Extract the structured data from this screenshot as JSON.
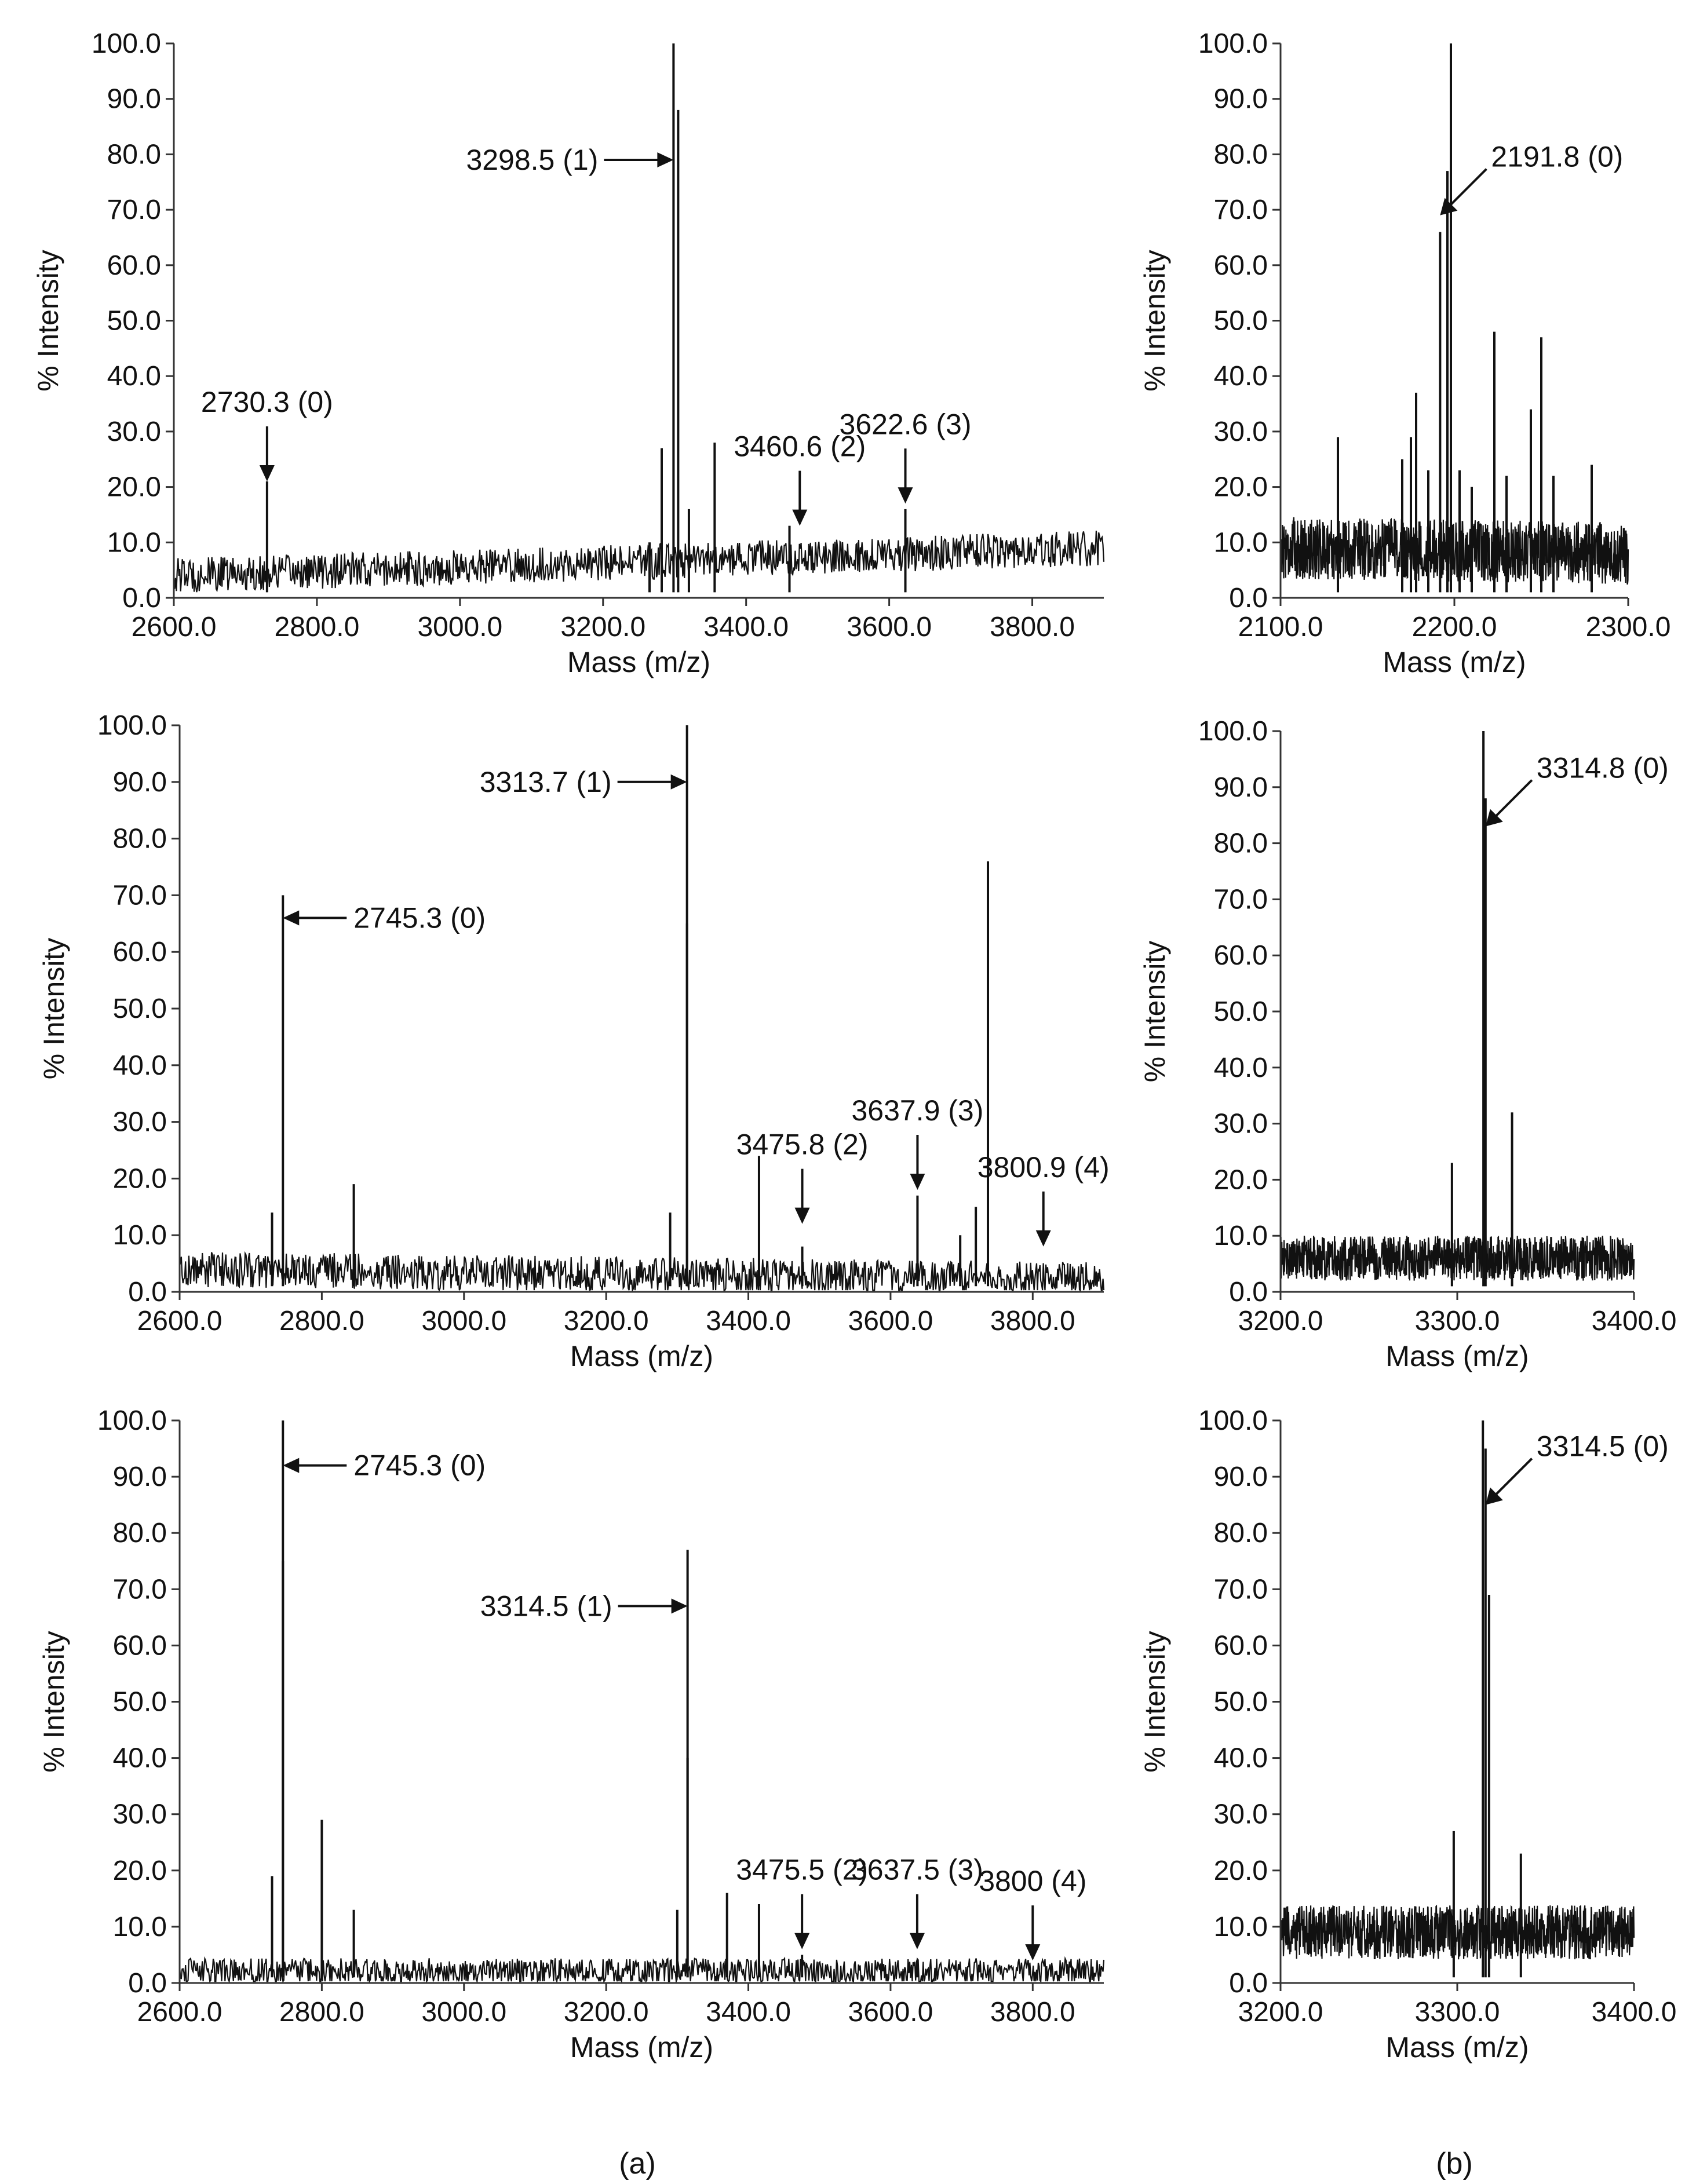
{
  "panel_labels": [
    "(a)",
    "(b)"
  ],
  "chart_data": [
    {
      "type": "line",
      "xlabel": "Mass (m/z)",
      "ylabel": "% Intensity",
      "xlim": [
        2600,
        3900
      ],
      "ylim": [
        0,
        100
      ],
      "xticks": [
        "2600.0",
        "2800.0",
        "3000.0",
        "3200.0",
        "3400.0",
        "3600.0",
        "3800.0"
      ],
      "yticks": [
        "0.0",
        "10.0",
        "20.0",
        "30.0",
        "40.0",
        "50.0",
        "60.0",
        "70.0",
        "80.0",
        "90.0",
        "100.0"
      ],
      "grid": false,
      "baseline": {
        "start": 4,
        "end": 9,
        "noise": 4
      },
      "peaks": [
        [
          2730.3,
          21
        ],
        [
          3265,
          10
        ],
        [
          3282,
          27
        ],
        [
          3298.5,
          100
        ],
        [
          3305,
          88
        ],
        [
          3320,
          16
        ],
        [
          3356,
          28
        ],
        [
          3460.6,
          13
        ],
        [
          3622.6,
          16
        ]
      ],
      "annotations": [
        {
          "text": "2730.3 (0)",
          "x": 2730.3,
          "y": 21,
          "dir": "down"
        },
        {
          "text": "3298.5 (1)",
          "x": 3298.5,
          "y": 79,
          "dir": "right"
        },
        {
          "text": "3460.6 (2)",
          "x": 3475,
          "y": 13,
          "dir": "down"
        },
        {
          "text": "3622.6 (3)",
          "x": 3622.6,
          "y": 17,
          "dir": "down"
        }
      ]
    },
    {
      "type": "line",
      "xlabel": "Mass (m/z)",
      "ylabel": "% Intensity",
      "xlim": [
        2100,
        2300
      ],
      "ylim": [
        0,
        100
      ],
      "xticks": [
        "2100.0",
        "2200.0",
        "2300.0"
      ],
      "yticks": [
        "0.0",
        "10.0",
        "20.0",
        "30.0",
        "40.0",
        "50.0",
        "60.0",
        "70.0",
        "80.0",
        "90.0",
        "100.0"
      ],
      "grid": false,
      "baseline": {
        "start": 9,
        "end": 8,
        "noise": 7
      },
      "peaks": [
        [
          2133,
          29
        ],
        [
          2170,
          25
        ],
        [
          2175,
          29
        ],
        [
          2178,
          37
        ],
        [
          2185,
          23
        ],
        [
          2191.8,
          66
        ],
        [
          2196,
          77
        ],
        [
          2198,
          100
        ],
        [
          2203,
          23
        ],
        [
          2210,
          20
        ],
        [
          2223,
          48
        ],
        [
          2230,
          22
        ],
        [
          2244,
          34
        ],
        [
          2250,
          47
        ],
        [
          2257,
          22
        ],
        [
          2279,
          24
        ]
      ],
      "annotations": [
        {
          "text": "2191.8  (0)",
          "x": 2191.8,
          "y": 69,
          "dir": "left-down"
        }
      ]
    },
    {
      "type": "line",
      "xlabel": "Mass (m/z)",
      "ylabel": "% Intensity",
      "xlim": [
        2600,
        3900
      ],
      "ylim": [
        0,
        100
      ],
      "xticks": [
        "2600.0",
        "2800.0",
        "3000.0",
        "3200.0",
        "3400.0",
        "3600.0",
        "3800.0"
      ],
      "yticks": [
        "0.0",
        "10.0",
        "20.0",
        "30.0",
        "40.0",
        "50.0",
        "60.0",
        "70.0",
        "80.0",
        "90.0",
        "100.0"
      ],
      "grid": false,
      "baseline": {
        "start": 4,
        "end": 2,
        "noise": 4
      },
      "peaks": [
        [
          2730,
          14
        ],
        [
          2745.3,
          70
        ],
        [
          2845,
          19
        ],
        [
          3290,
          14
        ],
        [
          3313.7,
          100
        ],
        [
          3313.7,
          65
        ],
        [
          3415,
          24
        ],
        [
          3475.8,
          8
        ],
        [
          3637.9,
          17
        ],
        [
          3698,
          10
        ],
        [
          3720,
          15
        ],
        [
          3737,
          76
        ]
      ],
      "annotations": [
        {
          "text": "2745.3 (0)",
          "x": 2745.3,
          "y": 66,
          "dir": "left"
        },
        {
          "text": "3313.7 (1)",
          "x": 3313.7,
          "y": 90,
          "dir": "right"
        },
        {
          "text": "3475.8 (2)",
          "x": 3475.8,
          "y": 12,
          "dir": "down"
        },
        {
          "text": "3637.9 (3)",
          "x": 3637.9,
          "y": 18,
          "dir": "down"
        },
        {
          "text": "3800.9 (4)",
          "x": 3815,
          "y": 8,
          "dir": "down"
        }
      ]
    },
    {
      "type": "line",
      "xlabel": "Mass (m/z)",
      "ylabel": "% Intensity",
      "xlim": [
        3200,
        3400
      ],
      "ylim": [
        0,
        100
      ],
      "xticks": [
        "3200.0",
        "3300.0",
        "3400.0"
      ],
      "yticks": [
        "0.0",
        "10.0",
        "20.0",
        "30.0",
        "40.0",
        "50.0",
        "60.0",
        "70.0",
        "80.0",
        "90.0",
        "100.0"
      ],
      "grid": false,
      "baseline": {
        "start": 6,
        "end": 6,
        "noise": 5
      },
      "peaks": [
        [
          3297,
          23
        ],
        [
          3314.8,
          100
        ],
        [
          3316,
          88
        ],
        [
          3331,
          32
        ]
      ],
      "annotations": [
        {
          "text": "3314.8 (0)",
          "x": 3316,
          "y": 83,
          "dir": "left-down"
        }
      ]
    },
    {
      "type": "line",
      "xlabel": "Mass (m/z)",
      "ylabel": "% Intensity",
      "xlim": [
        2600,
        3900
      ],
      "ylim": [
        0,
        100
      ],
      "xticks": [
        "2600.0",
        "2800.0",
        "3000.0",
        "3200.0",
        "3400.0",
        "3600.0",
        "3800.0"
      ],
      "yticks": [
        "0.0",
        "10.0",
        "20.0",
        "30.0",
        "40.0",
        "50.0",
        "60.0",
        "70.0",
        "80.0",
        "90.0",
        "100.0"
      ],
      "grid": false,
      "baseline": {
        "start": 2,
        "end": 2,
        "noise": 3
      },
      "peaks": [
        [
          2730,
          19
        ],
        [
          2745.3,
          100
        ],
        [
          2745.3,
          75
        ],
        [
          2800,
          29
        ],
        [
          2845,
          13
        ],
        [
          3300,
          13
        ],
        [
          3314.5,
          77
        ],
        [
          3314.5,
          40
        ],
        [
          3370,
          16
        ],
        [
          3415,
          14
        ],
        [
          3475.5,
          5
        ],
        [
          3637.5,
          4
        ]
      ],
      "annotations": [
        {
          "text": "2745.3 (0)",
          "x": 2745.3,
          "y": 92,
          "dir": "left"
        },
        {
          "text": "3314.5 (1)",
          "x": 3314.5,
          "y": 67,
          "dir": "right"
        },
        {
          "text": "3475.5 (2)",
          "x": 3475.5,
          "y": 6,
          "dir": "down"
        },
        {
          "text": "3637.5 (3)",
          "x": 3637.5,
          "y": 6,
          "dir": "down"
        },
        {
          "text": "3800 (4)",
          "x": 3800,
          "y": 4,
          "dir": "down"
        }
      ]
    },
    {
      "type": "line",
      "xlabel": "Mass (m/z)",
      "ylabel": "% Intensity",
      "xlim": [
        3200,
        3400
      ],
      "ylim": [
        0,
        100
      ],
      "xticks": [
        "3200.0",
        "3300.0",
        "3400.0"
      ],
      "yticks": [
        "0.0",
        "10.0",
        "20.0",
        "30.0",
        "40.0",
        "50.0",
        "60.0",
        "70.0",
        "80.0",
        "90.0",
        "100.0"
      ],
      "grid": false,
      "baseline": {
        "start": 9,
        "end": 9,
        "noise": 6
      },
      "peaks": [
        [
          3298,
          27
        ],
        [
          3314.5,
          100
        ],
        [
          3316,
          95
        ],
        [
          3318,
          69
        ],
        [
          3336,
          23
        ]
      ],
      "annotations": [
        {
          "text": "3314.5 (0)",
          "x": 3316,
          "y": 85,
          "dir": "left-down"
        }
      ]
    }
  ]
}
